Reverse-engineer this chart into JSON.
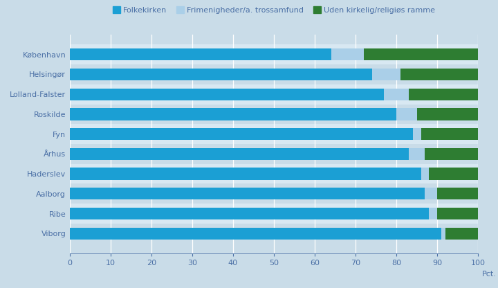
{
  "categories": [
    "København",
    "Helsingør",
    "Lolland-Falster",
    "Roskilde",
    "Fyn",
    "Århus",
    "Haderslev",
    "Aalborg",
    "Ribe",
    "Viborg"
  ],
  "folkekirken": [
    64,
    74,
    77,
    80,
    84,
    83,
    86,
    87,
    88,
    91
  ],
  "frimenigheder": [
    8,
    7,
    6,
    5,
    2,
    4,
    2,
    3,
    2,
    1
  ],
  "uden": [
    28,
    19,
    17,
    15,
    14,
    13,
    12,
    10,
    10,
    8
  ],
  "color_folkekirken": "#1b9fd4",
  "color_frimenigheder": "#aacfe8",
  "color_uden": "#2e7d32",
  "background_color": "#c9dce8",
  "bar_row_bg": "#c9dce8",
  "bar_row_alt": "#d8e8f2",
  "xlabel": "Pct.",
  "legend_labels": [
    "Folkekirken",
    "Frimenigheder/a. trossamfund",
    "Uden kirkelig/religiøs ramme"
  ],
  "xlim": [
    0,
    100
  ],
  "xticks": [
    0,
    10,
    20,
    30,
    40,
    50,
    60,
    70,
    80,
    90,
    100
  ],
  "label_color": "#4a6fa5",
  "tick_color": "#4a6fa5",
  "grid_color": "#ffffff",
  "figsize": [
    7.2,
    4.16
  ],
  "dpi": 100
}
